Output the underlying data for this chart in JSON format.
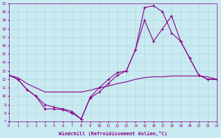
{
  "xlabel": "Windchill (Refroidissement éolien,°C)",
  "bg_color": "#c8eaf0",
  "grid_color": "#b0d8e0",
  "line_color": "#8b008b",
  "x_min": 0,
  "x_max": 23,
  "y_min": 7,
  "y_max": 21,
  "line1_x": [
    0,
    1,
    2,
    3,
    4,
    5,
    6,
    7,
    8,
    9,
    10,
    11,
    12,
    13,
    14,
    15,
    16,
    17,
    18,
    19,
    20,
    21,
    22,
    23
  ],
  "line1_y": [
    12.5,
    12.0,
    10.8,
    10.0,
    9.0,
    8.7,
    8.5,
    8.2,
    7.3,
    9.8,
    10.5,
    11.5,
    12.5,
    13.0,
    15.5,
    20.5,
    20.7,
    20.0,
    17.5,
    16.5,
    14.5,
    12.5,
    12.0,
    12.0
  ],
  "line2_x": [
    0,
    1,
    2,
    3,
    4,
    5,
    6,
    7,
    8,
    9,
    10,
    11,
    12,
    13,
    14,
    15,
    16,
    17,
    18,
    19,
    20,
    21,
    22,
    23
  ],
  "line2_y": [
    12.5,
    12.0,
    10.8,
    10.0,
    8.5,
    8.5,
    8.4,
    8.0,
    7.3,
    9.9,
    11.0,
    12.0,
    12.8,
    13.0,
    15.5,
    19.0,
    16.5,
    18.0,
    19.5,
    16.5,
    14.5,
    12.5,
    12.0,
    12.0
  ],
  "line3_x": [
    0,
    1,
    2,
    3,
    4,
    5,
    6,
    7,
    8,
    9,
    10,
    11,
    12,
    13,
    14,
    15,
    16,
    17,
    18,
    19,
    20,
    21,
    22,
    23
  ],
  "line3_y": [
    12.5,
    12.2,
    11.5,
    11.0,
    10.5,
    10.5,
    10.5,
    10.5,
    10.5,
    10.7,
    11.0,
    11.2,
    11.5,
    11.7,
    12.0,
    12.2,
    12.3,
    12.3,
    12.4,
    12.4,
    12.4,
    12.4,
    12.3,
    12.0
  ]
}
